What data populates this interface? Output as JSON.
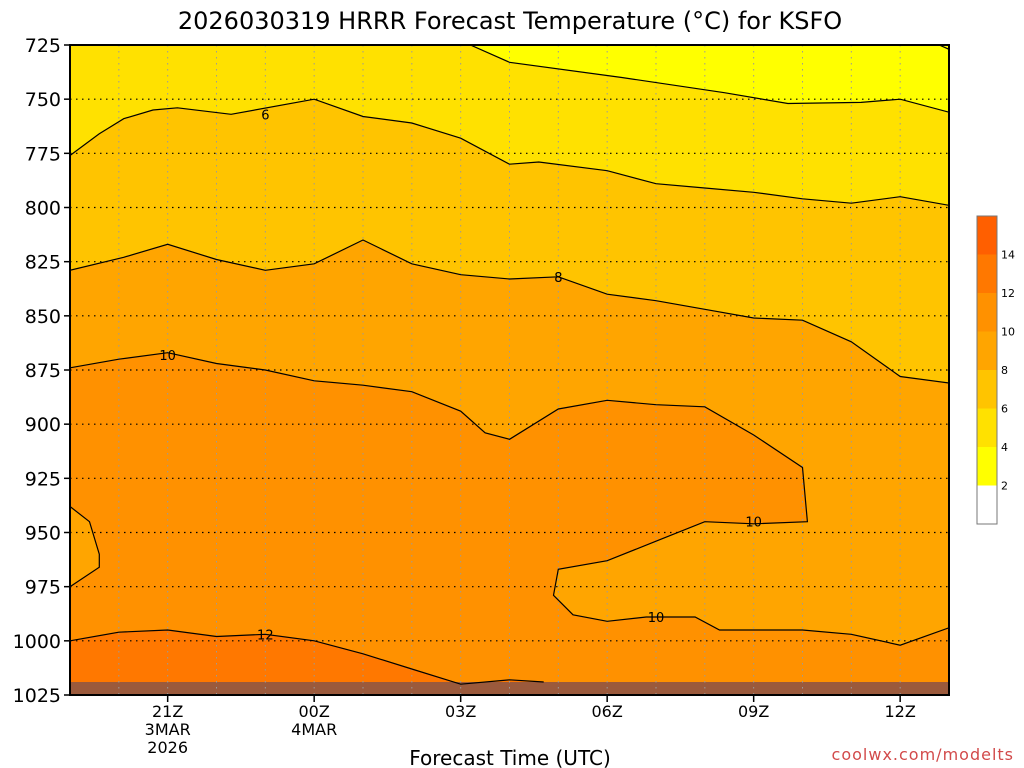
{
  "chart_data": {
    "type": "contour",
    "title": "2026030319 HRRR Forecast Temperature (°C) for KSFO",
    "xlabel": "Forecast Time (UTC)",
    "ylabel": "",
    "credit": "coolwx.com/modelts",
    "y_axis": {
      "quantity": "pressure level (hPa)",
      "reversed": true,
      "ylim": [
        725,
        1025
      ],
      "ticks": [
        "725",
        "750",
        "775",
        "800",
        "825",
        "850",
        "875",
        "900",
        "925",
        "950",
        "975",
        "1000",
        "1025"
      ]
    },
    "x_axis": {
      "range_hours_after_19Z": [
        0,
        18
      ],
      "ticks": [
        {
          "hour": 2,
          "lines": [
            "21Z",
            "3MAR",
            "2026"
          ]
        },
        {
          "hour": 5,
          "lines": [
            "00Z",
            "4MAR"
          ]
        },
        {
          "hour": 8,
          "lines": [
            "03Z"
          ]
        },
        {
          "hour": 11,
          "lines": [
            "06Z"
          ]
        },
        {
          "hour": 14,
          "lines": [
            "09Z"
          ]
        },
        {
          "hour": 17,
          "lines": [
            "12Z"
          ]
        }
      ]
    },
    "grid": true,
    "colorbar": {
      "placement": "right",
      "levels": [
        0,
        2,
        4,
        6,
        8,
        10,
        12,
        14,
        16
      ],
      "tick_labels": [
        "2",
        "4",
        "6",
        "8",
        "10",
        "12",
        "14"
      ],
      "colors": [
        "#ffffff",
        "#ffff00",
        "#ffe100",
        "#ffc400",
        "#ffa500",
        "#ff9100",
        "#ff7800",
        "#ff5f00"
      ]
    },
    "surface_color": "#9b5a3c",
    "contours": [
      {
        "level": 4,
        "points": [
          [
            8.2,
            725
          ],
          [
            9.0,
            733
          ],
          [
            11.3,
            740
          ],
          [
            13.4,
            747
          ],
          [
            14.7,
            752
          ],
          [
            16.2,
            751.5
          ],
          [
            17.0,
            750
          ],
          [
            18.0,
            756
          ]
        ]
      },
      {
        "level": 4,
        "points": [
          [
            17.8,
            725
          ],
          [
            18.0,
            727
          ]
        ]
      },
      {
        "level": 6,
        "points": [
          [
            0.0,
            776
          ],
          [
            0.6,
            766
          ],
          [
            1.1,
            759
          ],
          [
            1.7,
            755
          ],
          [
            2.2,
            754
          ],
          [
            3.3,
            757
          ],
          [
            5.0,
            750
          ],
          [
            6.0,
            758
          ],
          [
            7.0,
            761
          ],
          [
            8.0,
            768
          ],
          [
            9.0,
            780
          ],
          [
            9.6,
            779
          ],
          [
            11.0,
            783
          ],
          [
            12.0,
            789
          ],
          [
            13.0,
            791
          ],
          [
            14.0,
            793
          ],
          [
            15.0,
            796
          ],
          [
            16.0,
            798
          ],
          [
            17.0,
            795
          ],
          [
            18.0,
            799
          ]
        ]
      },
      {
        "level": 8,
        "points": [
          [
            0.0,
            829
          ],
          [
            1.1,
            823
          ],
          [
            2.0,
            817
          ],
          [
            3.0,
            824
          ],
          [
            4.0,
            829
          ],
          [
            5.0,
            826
          ],
          [
            6.0,
            815
          ],
          [
            7.0,
            826
          ],
          [
            8.0,
            831
          ],
          [
            9.0,
            833
          ],
          [
            10.0,
            832
          ],
          [
            11.0,
            840
          ],
          [
            12.0,
            843
          ],
          [
            13.0,
            847
          ],
          [
            14.0,
            851
          ],
          [
            15.0,
            852
          ],
          [
            16.0,
            862
          ],
          [
            17.0,
            878
          ],
          [
            18.0,
            881
          ]
        ]
      },
      {
        "level": 10,
        "points": [
          [
            0.0,
            874
          ],
          [
            1.0,
            870
          ],
          [
            2.0,
            867
          ],
          [
            3.0,
            872
          ],
          [
            4.0,
            875
          ],
          [
            5.0,
            880
          ],
          [
            6.0,
            882
          ],
          [
            7.0,
            885
          ],
          [
            8.0,
            894
          ],
          [
            8.5,
            904
          ],
          [
            9.0,
            907
          ],
          [
            10.0,
            893
          ],
          [
            11.0,
            889
          ],
          [
            12.0,
            891
          ],
          [
            13.0,
            892
          ],
          [
            14.0,
            905
          ],
          [
            15.0,
            920
          ],
          [
            15.1,
            945
          ],
          [
            14.0,
            946
          ],
          [
            13.0,
            945
          ],
          [
            12.0,
            954
          ],
          [
            11.0,
            963
          ],
          [
            10.0,
            967
          ],
          [
            9.9,
            979
          ],
          [
            10.3,
            988
          ],
          [
            11.0,
            991
          ],
          [
            11.8,
            989
          ],
          [
            12.8,
            989
          ],
          [
            13.3,
            995
          ],
          [
            14.0,
            995
          ],
          [
            15.0,
            995
          ],
          [
            16.0,
            997
          ],
          [
            17.0,
            1002
          ],
          [
            18.0,
            994
          ]
        ]
      },
      {
        "level": 10,
        "points": [
          [
            0.0,
            938
          ],
          [
            0.4,
            945
          ],
          [
            0.6,
            960
          ],
          [
            0.6,
            966
          ],
          [
            0.0,
            975
          ]
        ]
      },
      {
        "level": 12,
        "points": [
          [
            0.0,
            1000
          ],
          [
            1.0,
            996
          ],
          [
            2.0,
            995
          ],
          [
            3.0,
            998
          ],
          [
            4.0,
            997
          ],
          [
            5.0,
            1000
          ],
          [
            6.0,
            1006
          ],
          [
            7.0,
            1013
          ],
          [
            8.0,
            1020
          ],
          [
            9.0,
            1018
          ],
          [
            9.7,
            1019
          ]
        ]
      }
    ],
    "contour_labels": [
      {
        "text": "6",
        "at": [
          4.0,
          757
        ]
      },
      {
        "text": "8",
        "at": [
          10.0,
          832
        ]
      },
      {
        "text": "10",
        "at": [
          2.0,
          868
        ]
      },
      {
        "text": "10",
        "at": [
          14.0,
          945
        ]
      },
      {
        "text": "10",
        "at": [
          12.0,
          989
        ]
      },
      {
        "text": "12",
        "at": [
          4.0,
          997
        ]
      }
    ]
  }
}
